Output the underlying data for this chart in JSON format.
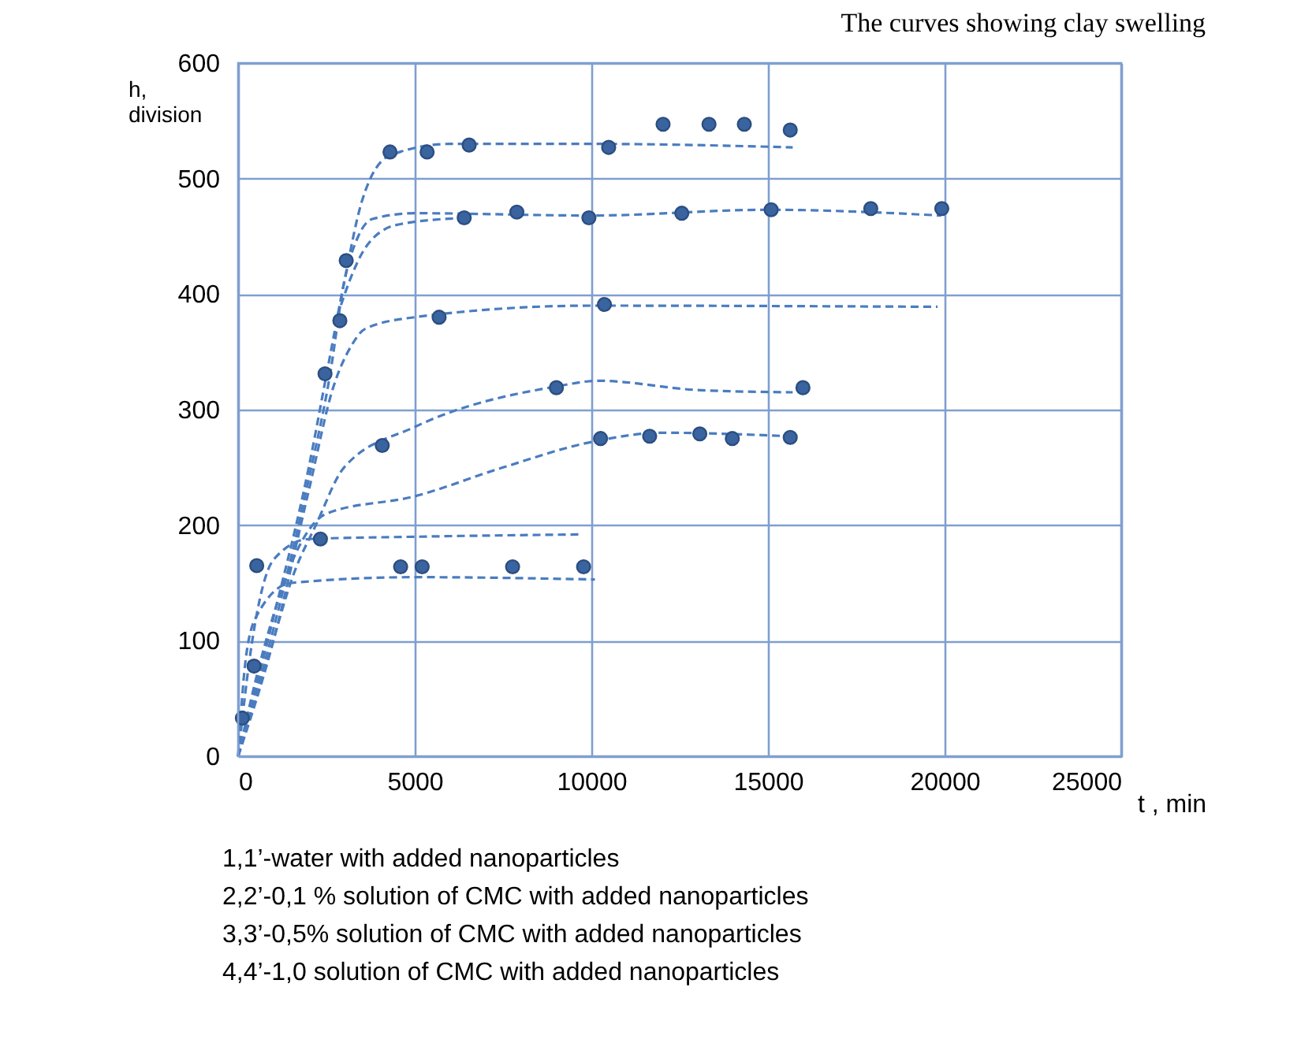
{
  "chart_data": {
    "type": "scatter",
    "title": "The curves showing clay swelling",
    "xlabel": "t , min",
    "ylabel": "h,\ndivision",
    "xlim": [
      0,
      25000
    ],
    "xticks": [
      0,
      5000,
      10000,
      15000,
      20000,
      25000
    ],
    "ylim": [
      0,
      600
    ],
    "yticks": [
      0,
      100,
      200,
      300,
      400,
      500,
      600
    ],
    "grid": true,
    "series": [
      {
        "marker": "circle",
        "color": "#3a64a0",
        "x": [
          120,
          450,
          527,
          2330,
          2460,
          2880,
          3060,
          4080,
          4300,
          4600,
          5210,
          5350,
          5690,
          6400,
          6540,
          7770,
          7890,
          9010,
          9780,
          9930,
          10260,
          10370,
          10490,
          11650,
          12030,
          12560,
          13070,
          13330,
          13990,
          14330,
          15090,
          15630,
          15630,
          15990,
          17910,
          19920
        ],
        "values": [
          33,
          78,
          165,
          188,
          331,
          377,
          429,
          269,
          523,
          164,
          164,
          523,
          380,
          466,
          529,
          164,
          471,
          319,
          164,
          466,
          275,
          391,
          527,
          277,
          547,
          470,
          279,
          547,
          275,
          547,
          473,
          276,
          542,
          319,
          474,
          474
        ]
      },
      {
        "type": "line",
        "line_style": "dashed",
        "color": "#4a7cc0",
        "x": [
          0,
          1000,
          2000,
          2500,
          3000,
          3500,
          4300,
          6000,
          10000,
          15700
        ],
        "values": [
          0,
          120,
          250,
          330,
          410,
          480,
          520,
          530,
          530,
          527
        ]
      },
      {
        "type": "line",
        "line_style": "dashed",
        "color": "#4a7cc0",
        "x": [
          0,
          1000,
          2000,
          2600,
          3000,
          3400,
          3800,
          5000,
          10000,
          15000,
          19900
        ],
        "values": [
          0,
          110,
          240,
          330,
          410,
          450,
          465,
          470,
          468,
          473,
          468
        ]
      },
      {
        "type": "line",
        "line_style": "dashed",
        "color": "#4a7cc0",
        "x": [
          2800,
          3200,
          3600,
          4500,
          6400
        ],
        "values": [
          380,
          415,
          440,
          460,
          466
        ]
      },
      {
        "type": "line",
        "line_style": "dashed",
        "color": "#4a7cc0",
        "x": [
          0,
          1000,
          2000,
          2700,
          3200,
          3600,
          5000,
          10000,
          19800
        ],
        "values": [
          0,
          100,
          230,
          320,
          355,
          370,
          380,
          390,
          389
        ]
      },
      {
        "type": "line",
        "line_style": "dashed",
        "color": "#4a7cc0",
        "x": [
          0,
          800,
          1600,
          2200,
          3000,
          5000,
          9000,
          10200,
          13000,
          15700
        ],
        "values": [
          0,
          80,
          160,
          200,
          250,
          285,
          320,
          325,
          317,
          315
        ]
      },
      {
        "type": "line",
        "line_style": "dashed",
        "color": "#4a7cc0",
        "x": [
          0,
          700,
          1700,
          2500,
          5000,
          7500,
          10000,
          12000,
          15600
        ],
        "values": [
          0,
          90,
          180,
          210,
          225,
          250,
          272,
          280,
          277
        ]
      },
      {
        "type": "line",
        "line_style": "dashed",
        "color": "#4a7cc0",
        "x": [
          0,
          400,
          1000,
          2000,
          5000,
          9700
        ],
        "values": [
          0,
          100,
          170,
          188,
          190,
          192
        ]
      },
      {
        "type": "line",
        "line_style": "dashed",
        "color": "#4a7cc0",
        "x": [
          0,
          200,
          500,
          1500,
          5000,
          10100
        ],
        "values": [
          0,
          80,
          120,
          150,
          155,
          153
        ]
      }
    ],
    "annotations": [
      "1,1’-water with added nanoparticles",
      "2,2’-0,1 % solution of CMC with added nanoparticles",
      "3,3’-0,5% solution of CMC with added nanoparticles",
      "4,4’-1,0 solution of CMC with added nanoparticles"
    ]
  }
}
